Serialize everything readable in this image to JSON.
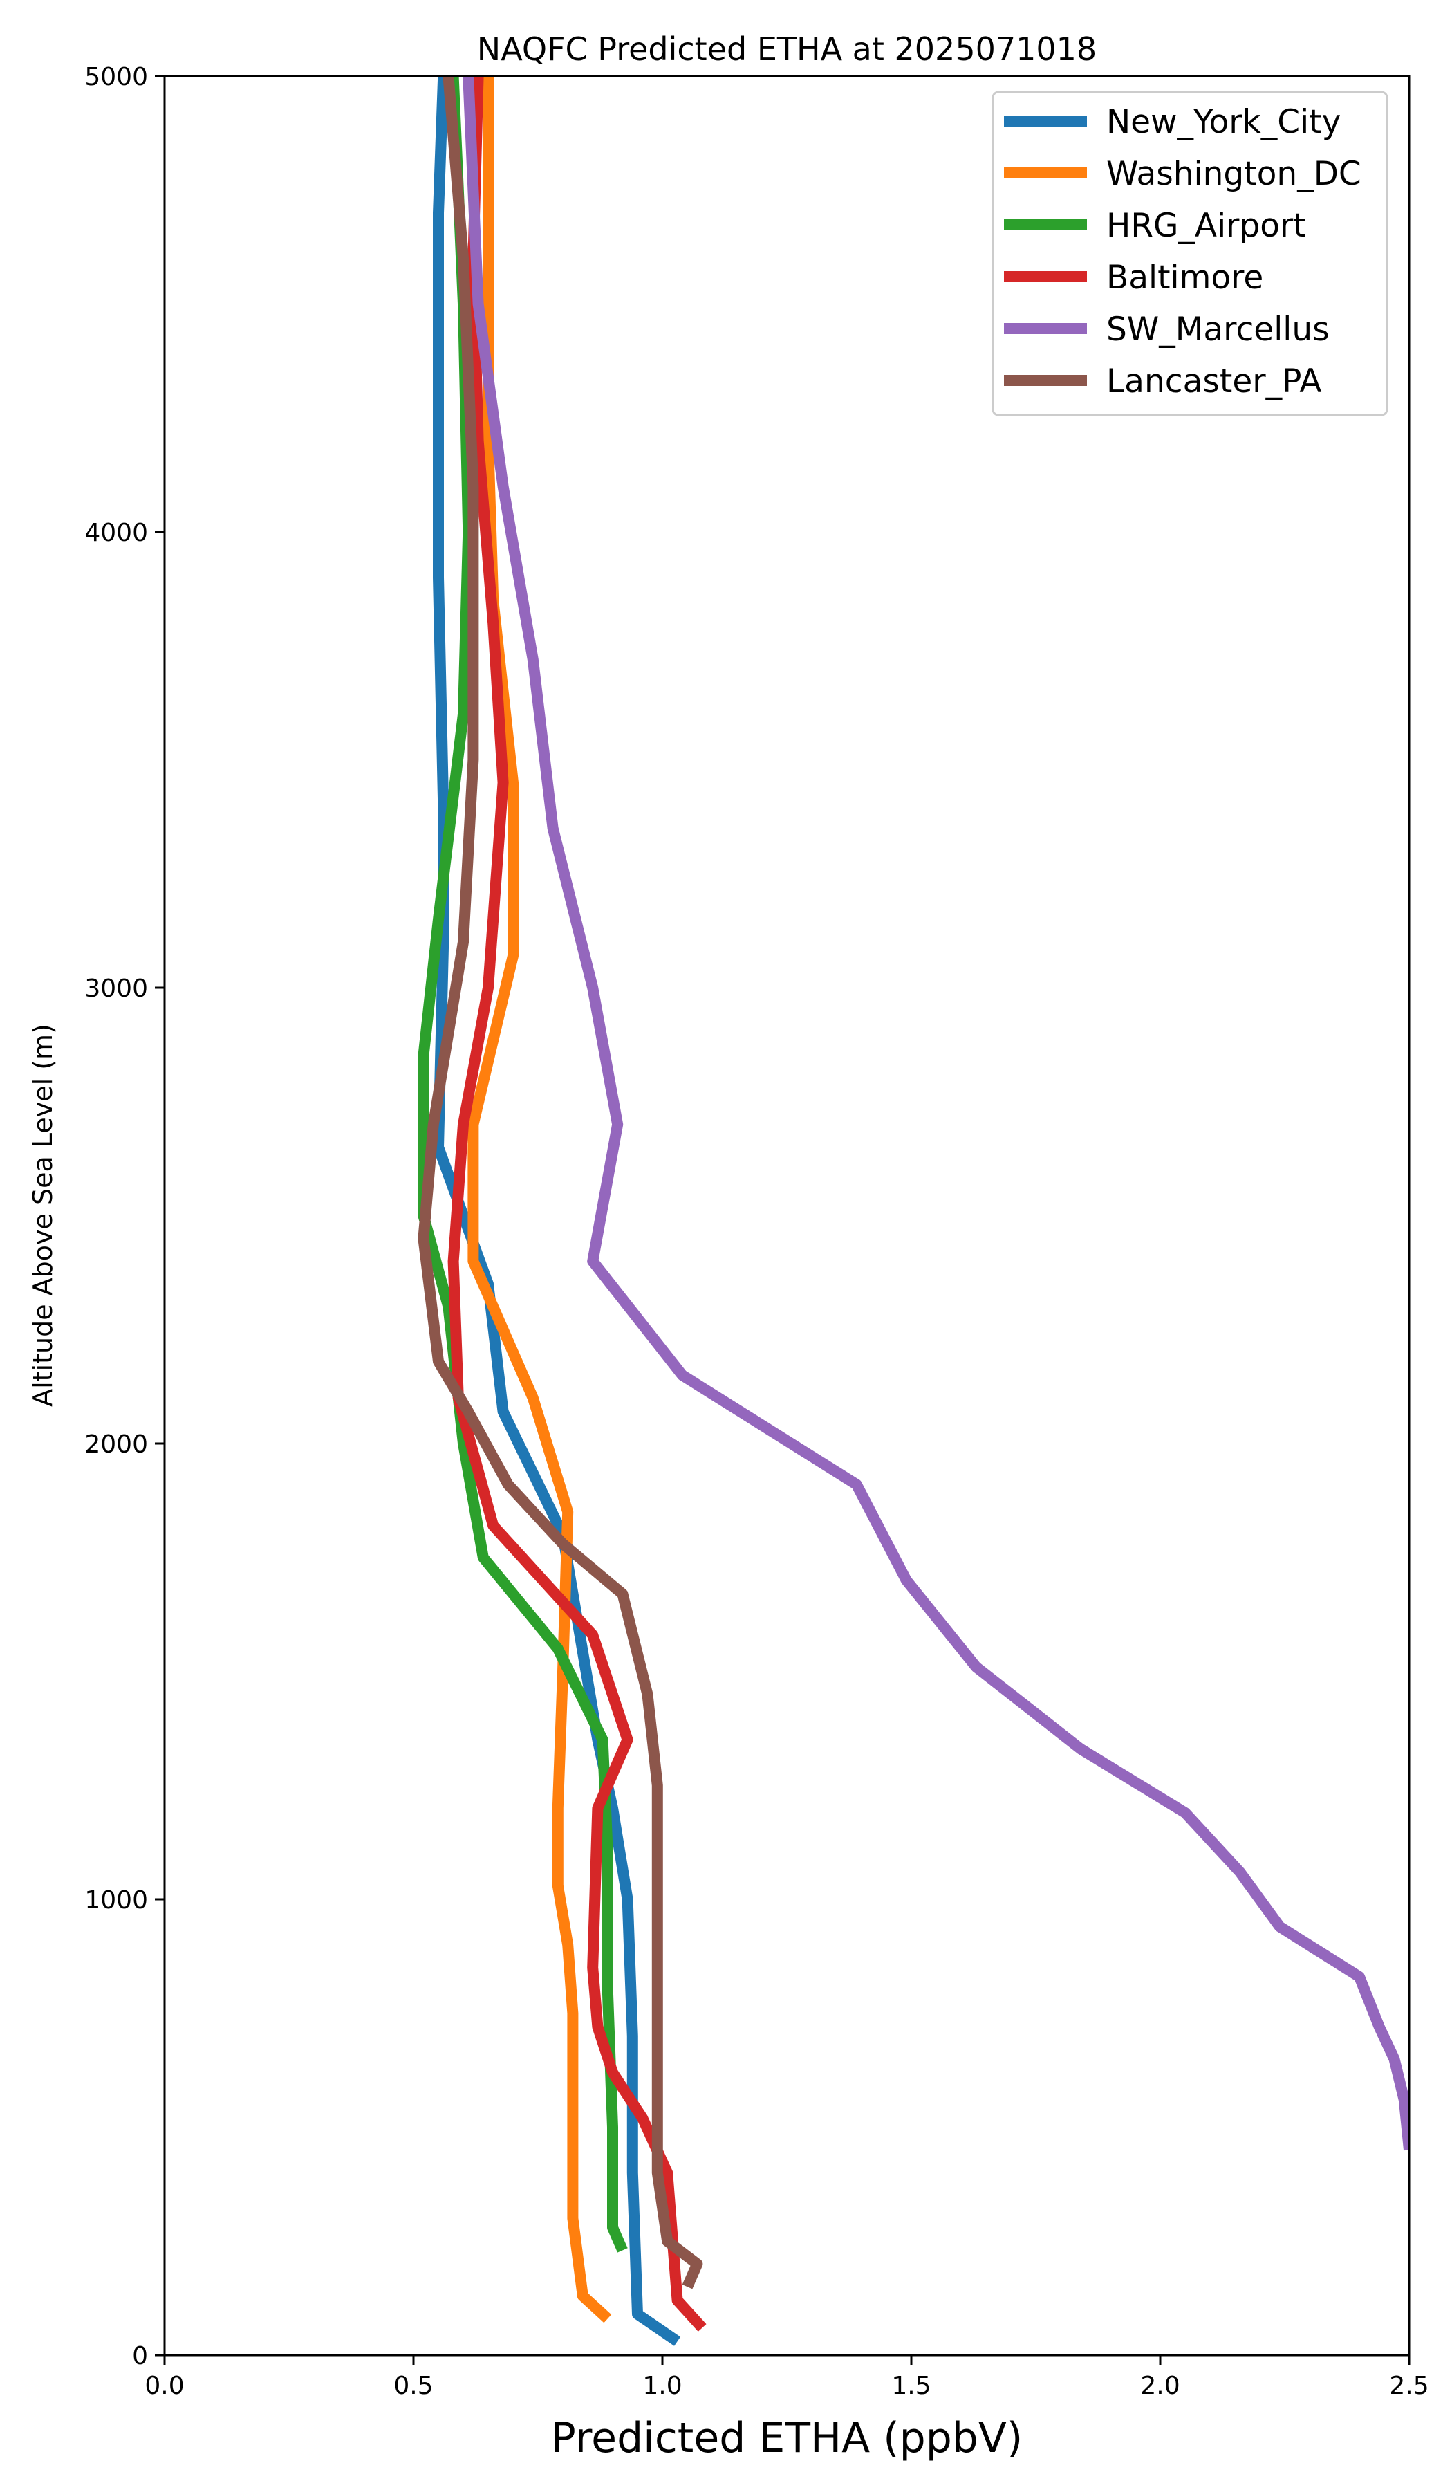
{
  "chart_data": {
    "type": "line",
    "title": "NAQFC Predicted ETHA at 2025071018",
    "xlabel": "Predicted ETHA (ppbV)",
    "ylabel": "Altitude Above Sea Level (m)",
    "xlim": [
      0.0,
      2.5
    ],
    "ylim": [
      0,
      5000
    ],
    "xticks": [
      0.0,
      0.5,
      1.0,
      1.5,
      2.0,
      2.5
    ],
    "xtick_labels": [
      "0.0",
      "0.5",
      "1.0",
      "1.5",
      "2.0",
      "2.5"
    ],
    "yticks": [
      0,
      1000,
      2000,
      3000,
      4000,
      5000
    ],
    "ytick_labels": [
      "0",
      "1000",
      "2000",
      "3000",
      "4000",
      "5000"
    ],
    "grid": false,
    "legend_position": "top-right",
    "series": [
      {
        "name": "New_York_City",
        "color": "#1f77b4",
        "points": [
          [
            1.03,
            30
          ],
          [
            0.95,
            90
          ],
          [
            0.94,
            400
          ],
          [
            0.94,
            700
          ],
          [
            0.93,
            1000
          ],
          [
            0.9,
            1200
          ],
          [
            0.87,
            1350
          ],
          [
            0.8,
            1800
          ],
          [
            0.68,
            2070
          ],
          [
            0.65,
            2350
          ],
          [
            0.55,
            2650
          ],
          [
            0.56,
            3100
          ],
          [
            0.56,
            3400
          ],
          [
            0.55,
            3900
          ],
          [
            0.55,
            4300
          ],
          [
            0.55,
            4700
          ],
          [
            0.56,
            5000
          ]
        ]
      },
      {
        "name": "Washington_DC",
        "color": "#ff7f0e",
        "points": [
          [
            0.89,
            80
          ],
          [
            0.84,
            130
          ],
          [
            0.82,
            300
          ],
          [
            0.82,
            750
          ],
          [
            0.81,
            900
          ],
          [
            0.79,
            1030
          ],
          [
            0.79,
            1200
          ],
          [
            0.8,
            1500
          ],
          [
            0.81,
            1850
          ],
          [
            0.74,
            2100
          ],
          [
            0.62,
            2400
          ],
          [
            0.62,
            2700
          ],
          [
            0.7,
            3070
          ],
          [
            0.7,
            3450
          ],
          [
            0.66,
            3850
          ],
          [
            0.65,
            4200
          ],
          [
            0.65,
            4600
          ],
          [
            0.65,
            5000
          ]
        ]
      },
      {
        "name": "HRG_Airport",
        "color": "#2ca02c",
        "points": [
          [
            0.92,
            230
          ],
          [
            0.9,
            280
          ],
          [
            0.9,
            500
          ],
          [
            0.89,
            800
          ],
          [
            0.89,
            1100
          ],
          [
            0.88,
            1350
          ],
          [
            0.79,
            1550
          ],
          [
            0.64,
            1750
          ],
          [
            0.6,
            2000
          ],
          [
            0.57,
            2300
          ],
          [
            0.52,
            2500
          ],
          [
            0.52,
            2850
          ],
          [
            0.55,
            3150
          ],
          [
            0.6,
            3600
          ],
          [
            0.61,
            4000
          ],
          [
            0.6,
            4500
          ],
          [
            0.58,
            5000
          ]
        ]
      },
      {
        "name": "Baltimore",
        "color": "#d62728",
        "points": [
          [
            1.08,
            60
          ],
          [
            1.03,
            120
          ],
          [
            1.01,
            400
          ],
          [
            0.96,
            520
          ],
          [
            0.9,
            620
          ],
          [
            0.87,
            720
          ],
          [
            0.86,
            850
          ],
          [
            0.87,
            1200
          ],
          [
            0.93,
            1350
          ],
          [
            0.86,
            1580
          ],
          [
            0.66,
            1820
          ],
          [
            0.59,
            2100
          ],
          [
            0.58,
            2400
          ],
          [
            0.6,
            2700
          ],
          [
            0.65,
            3000
          ],
          [
            0.68,
            3450
          ],
          [
            0.66,
            3800
          ],
          [
            0.63,
            4200
          ],
          [
            0.62,
            4600
          ],
          [
            0.63,
            5000
          ]
        ]
      },
      {
        "name": "SW_Marcellus",
        "color": "#9467bd",
        "points": [
          [
            2.5,
            450
          ],
          [
            2.49,
            560
          ],
          [
            2.47,
            650
          ],
          [
            2.44,
            720
          ],
          [
            2.4,
            830
          ],
          [
            2.24,
            940
          ],
          [
            2.16,
            1060
          ],
          [
            2.05,
            1190
          ],
          [
            1.84,
            1330
          ],
          [
            1.63,
            1510
          ],
          [
            1.49,
            1700
          ],
          [
            1.39,
            1910
          ],
          [
            1.04,
            2150
          ],
          [
            0.86,
            2400
          ],
          [
            0.91,
            2700
          ],
          [
            0.86,
            3000
          ],
          [
            0.78,
            3350
          ],
          [
            0.74,
            3720
          ],
          [
            0.68,
            4100
          ],
          [
            0.63,
            4500
          ],
          [
            0.61,
            5000
          ]
        ]
      },
      {
        "name": "Lancaster_PA",
        "color": "#8c564b",
        "points": [
          [
            1.05,
            150
          ],
          [
            1.07,
            200
          ],
          [
            1.01,
            250
          ],
          [
            0.99,
            400
          ],
          [
            0.99,
            1000
          ],
          [
            0.99,
            1250
          ],
          [
            0.97,
            1450
          ],
          [
            0.92,
            1670
          ],
          [
            0.8,
            1780
          ],
          [
            0.69,
            1910
          ],
          [
            0.61,
            2070
          ],
          [
            0.55,
            2180
          ],
          [
            0.52,
            2450
          ],
          [
            0.54,
            2700
          ],
          [
            0.6,
            3100
          ],
          [
            0.62,
            3500
          ],
          [
            0.62,
            4100
          ],
          [
            0.6,
            4600
          ],
          [
            0.57,
            5000
          ]
        ]
      }
    ]
  }
}
